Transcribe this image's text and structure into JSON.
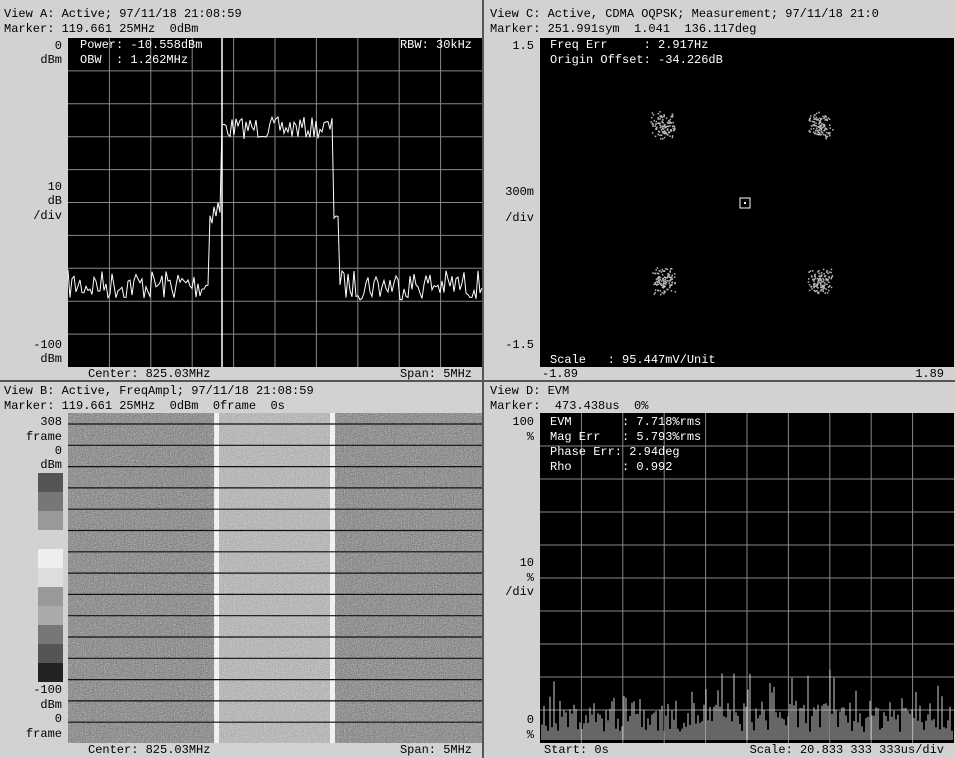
{
  "view_a": {
    "header": "View A: Active; 97/11/18 21:08:59",
    "marker": "Marker: 119.661 25MHz  0dBm",
    "y_labels": [
      "0",
      "dBm",
      "10",
      "dB",
      "/div",
      "-100",
      "dBm"
    ],
    "readouts": [
      "Power: -10.558dBm",
      "OBW  : 1.262MHz"
    ],
    "rbw": "RBW: 30kHz",
    "footer_left": "Center: 825.03MHz",
    "footer_right": "Span: 5MHz"
  },
  "view_c": {
    "header": "View C: Active, CDMA OQPSK; Measurement; 97/11/18 21:0",
    "marker": "Marker: 251.991sym  1.041  136.117deg",
    "y_labels": [
      "1.5",
      "300m",
      "/div",
      "-1.5"
    ],
    "readouts": [
      "Freq Err     : 2.917Hz",
      "Origin Offset: -34.226dB"
    ],
    "scale": "Scale   : 95.447mV/Unit",
    "x_left": "-1.89",
    "x_right": "1.89"
  },
  "view_b": {
    "header": "View B: Active, FreqAmpl; 97/11/18 21:08:59",
    "marker": "Marker: 119.661 25MHz  0dBm  0frame  0s",
    "y_labels": [
      "308",
      "frame",
      "0",
      "dBm",
      "-100",
      "dBm",
      "0",
      "frame"
    ],
    "footer_left": "Center: 825.03MHz",
    "footer_right": "Span: 5MHz"
  },
  "view_d": {
    "header": "View D: EVM",
    "marker": "Marker:  473.438us  0%",
    "y_labels": [
      "100",
      "%",
      "10",
      "%",
      "/div",
      "0",
      "%"
    ],
    "readouts": [
      "EVM       : 7.718%rms",
      "Mag Err   : 5.793%rms",
      "Phase Err: 2.94deg",
      "Rho       : 0.992"
    ],
    "footer_left": "Start: 0s",
    "footer_right": "Scale: 20.833 333 333us/div"
  }
}
